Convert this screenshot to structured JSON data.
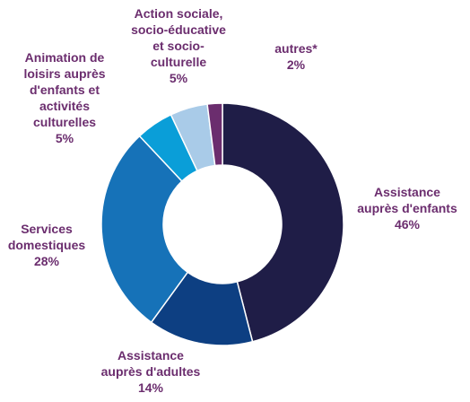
{
  "chart_data": {
    "type": "pie",
    "variant": "donut",
    "title": "",
    "categories": [
      "Assistance auprès d'enfants",
      "Assistance auprès d'adultes",
      "Services domestiques",
      "Animation de loisirs auprès d'enfants et activités culturelles",
      "Action sociale, socio-éducative et socio-culturelle",
      "autres*"
    ],
    "values": [
      46,
      14,
      28,
      5,
      5,
      2
    ],
    "unit": "%",
    "colors": [
      "#1f1d47",
      "#0d3f82",
      "#1672b8",
      "#0a9ed8",
      "#a9cbe8",
      "#6b2d6e"
    ],
    "label_color": "#6b2d6e"
  },
  "labels": [
    {
      "lines": [
        "Assistance",
        "auprès d'enfants"
      ],
      "pct": "46%"
    },
    {
      "lines": [
        "Assistance",
        "auprès d'adultes"
      ],
      "pct": "14%"
    },
    {
      "lines": [
        "Services",
        "domestiques"
      ],
      "pct": "28%"
    },
    {
      "lines": [
        "Animation de",
        "loisirs auprès",
        "d'enfants et",
        "activités",
        "culturelles"
      ],
      "pct": "5%"
    },
    {
      "lines": [
        "Action sociale,",
        "socio-éducative",
        "et socio-",
        "culturelle"
      ],
      "pct": "5%"
    },
    {
      "lines": [
        "autres*"
      ],
      "pct": "2%"
    }
  ]
}
